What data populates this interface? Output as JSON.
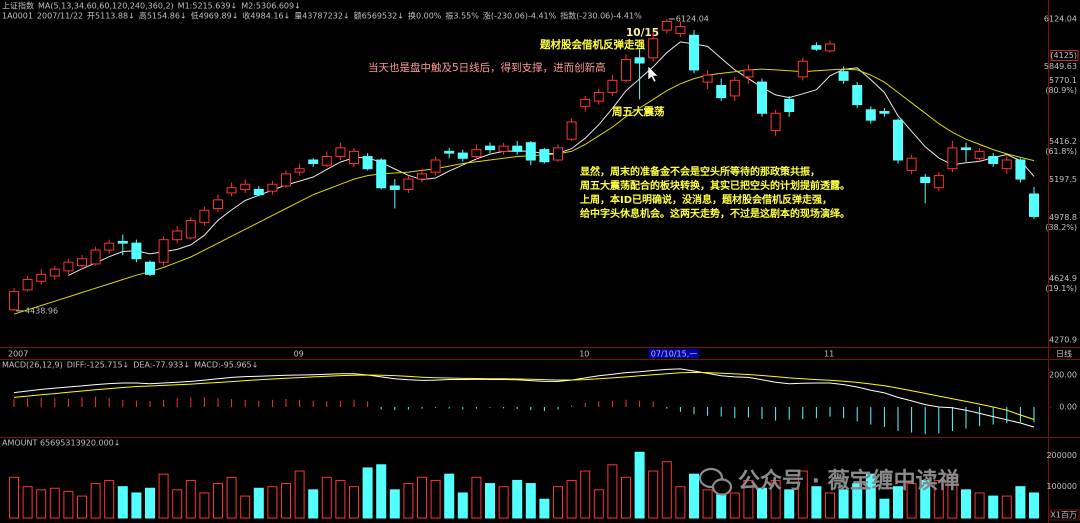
{
  "header": {
    "line1": [
      "上证指数",
      "MA(5,13,34,60,60,120,240,360,2)",
      "M1:5215.639↓",
      "M2:5306.609↓"
    ],
    "line2": [
      "1A0001",
      "2007/11/22",
      "开5113.88↓",
      "高5154.86↓",
      "低4969.89↓",
      "收4984.16↓",
      "量43787232↓",
      "额6569532↓",
      "换0.00%",
      "振3.55%",
      "涨(-230.06)-4.41%",
      "指数(-230.06)-4.41%"
    ]
  },
  "annotations": [
    "10/15",
    "题材股会借机反弹走强",
    "当天也是盘中触及5日线后，得到支撑，进而创新高",
    "周五大震荡"
  ],
  "note_lines": [
    "显然，周末的准备金不会是空头所等待的那政策共振，",
    "周五大震荡配合的板块转换，其实已把空头的计划提前透露。",
    "上周，本ID已明确说，没消息，题材股会借机反弹走强，",
    "给中字头休息机会。这两天走势，不过是这剧本的现场演绎。"
  ],
  "watermark": "公众号 · 薇宝缠中读禅",
  "chart_data": [
    {
      "type": "candlestick",
      "categories": [
        "2007",
        null,
        null,
        null,
        null,
        null,
        null,
        null,
        null,
        null,
        null,
        null,
        null,
        null,
        null,
        null,
        null,
        null,
        null,
        null,
        null,
        "09",
        null,
        null,
        null,
        null,
        null,
        null,
        null,
        null,
        null,
        null,
        null,
        null,
        null,
        null,
        null,
        null,
        null,
        null,
        null,
        null,
        "10",
        null,
        null,
        null,
        null,
        null,
        "07/10/15,一",
        null,
        null,
        null,
        null,
        null,
        null,
        null,
        null,
        null,
        null,
        null,
        "11",
        null,
        null,
        null,
        null,
        null,
        null,
        null,
        null,
        null,
        null,
        null,
        null,
        null,
        null,
        null
      ],
      "period": "日线",
      "open": [
        4445,
        4560,
        4610,
        4640,
        4670,
        4700,
        4710,
        4790,
        4840,
        4830,
        4720,
        4720,
        4850,
        4860,
        4950,
        5030,
        5120,
        5140,
        5140,
        5130,
        5160,
        5240,
        5310,
        5280,
        5330,
        5290,
        5330,
        5310,
        5160,
        5140,
        5200,
        5240,
        5360,
        5350,
        5330,
        5390,
        5360,
        5390,
        5410,
        5370,
        5310,
        5430,
        5620,
        5650,
        5700,
        5770,
        5900,
        5900,
        6060,
        6040,
        6030,
        5760,
        5740,
        5680,
        5790,
        5760,
        5480,
        5660,
        5790,
        5970,
        5940,
        5820,
        5740,
        5600,
        5590,
        5540,
        5250,
        5210,
        5150,
        5260,
        5380,
        5320,
        5330,
        5260,
        5310,
        5113.88
      ],
      "high": [
        4570,
        4640,
        4680,
        4700,
        4740,
        4760,
        4810,
        4850,
        4880,
        4850,
        4730,
        4870,
        4930,
        4980,
        5040,
        5110,
        5180,
        5200,
        5160,
        5190,
        5250,
        5290,
        5320,
        5360,
        5410,
        5380,
        5350,
        5320,
        5200,
        5220,
        5260,
        5330,
        5380,
        5370,
        5400,
        5410,
        5410,
        5420,
        5420,
        5380,
        5400,
        5550,
        5680,
        5720,
        5800,
        5920,
        5950,
        6050,
        6124.04,
        6110,
        6060,
        5830,
        5780,
        5790,
        5860,
        5780,
        5600,
        5680,
        5900,
        5990,
        6000,
        5850,
        5760,
        5620,
        5610,
        5550,
        5340,
        5230,
        5240,
        5420,
        5410,
        5380,
        5350,
        5330,
        5320,
        5154.86
      ],
      "low": [
        4438.96,
        4550,
        4590,
        4620,
        4650,
        4680,
        4700,
        4770,
        4760,
        4720,
        4640,
        4700,
        4830,
        4850,
        4930,
        5010,
        5100,
        5120,
        5100,
        5110,
        5150,
        5220,
        5270,
        5270,
        5310,
        5270,
        5250,
        5140,
        5030,
        5120,
        5180,
        5220,
        5320,
        5300,
        5310,
        5350,
        5340,
        5340,
        5280,
        5290,
        5300,
        5420,
        5590,
        5630,
        5680,
        5760,
        5660,
        5880,
        6040,
        6020,
        5810,
        5720,
        5650,
        5650,
        5750,
        5560,
        5450,
        5560,
        5770,
        5940,
        5930,
        5750,
        5610,
        5520,
        5560,
        5290,
        5230,
        5060,
        5130,
        5240,
        5300,
        5300,
        5270,
        5230,
        5180,
        4969.89
      ],
      "close": [
        4550,
        4620,
        4650,
        4680,
        4720,
        4740,
        4790,
        4830,
        4830,
        4740,
        4650,
        4850,
        4900,
        4960,
        5020,
        5080,
        5150,
        5170,
        5110,
        5170,
        5230,
        5260,
        5290,
        5330,
        5380,
        5360,
        5260,
        5150,
        5140,
        5200,
        5230,
        5310,
        5350,
        5320,
        5370,
        5370,
        5390,
        5360,
        5310,
        5300,
        5380,
        5530,
        5660,
        5700,
        5770,
        5890,
        5870,
        6010,
        6110,
        6080,
        5830,
        5800,
        5670,
        5770,
        5830,
        5580,
        5580,
        5590,
        5880,
        5950,
        5980,
        5770,
        5630,
        5540,
        5580,
        5310,
        5320,
        5180,
        5220,
        5380,
        5370,
        5360,
        5290,
        5310,
        5200,
        4984.16
      ],
      "up_color": "#ff3232",
      "down_color": "#54ffff",
      "ma_lines": [
        {
          "color": "#e8e8e8",
          "values": [
            null,
            null,
            null,
            null,
            4644,
            4682,
            4716,
            4752,
            4782,
            4786,
            4768,
            4780,
            4794,
            4820,
            4876,
            4962,
            5022,
            5076,
            5106,
            5136,
            5166,
            5188,
            5212,
            5256,
            5298,
            5324,
            5324,
            5296,
            5258,
            5222,
            5196,
            5206,
            5246,
            5282,
            5316,
            5344,
            5360,
            5362,
            5360,
            5346,
            5348,
            5376,
            5436,
            5514,
            5608,
            5710,
            5778,
            5848,
            5930,
            5992,
            5980,
            5966,
            5898,
            5830,
            5780,
            5730,
            5686,
            5670,
            5692,
            5716,
            5796,
            5834,
            5842,
            5774,
            5700,
            5566,
            5476,
            5386,
            5322,
            5282,
            5294,
            5302,
            5324,
            5342,
            5306,
            5215.639
          ]
        },
        {
          "color": "#d8d800",
          "values": [
            4420,
            4445,
            4470,
            4495,
            4520,
            4545,
            4570,
            4595,
            4620,
            4645,
            4665,
            4690,
            4720,
            4750,
            4790,
            4830,
            4870,
            4910,
            4950,
            4990,
            5030,
            5070,
            5110,
            5140,
            5170,
            5200,
            5220,
            5230,
            5235,
            5240,
            5250,
            5260,
            5275,
            5290,
            5300,
            5310,
            5320,
            5330,
            5335,
            5340,
            5345,
            5360,
            5400,
            5450,
            5500,
            5560,
            5610,
            5660,
            5710,
            5750,
            5780,
            5800,
            5810,
            5820,
            5830,
            5835,
            5830,
            5825,
            5820,
            5825,
            5830,
            5835,
            5830,
            5800,
            5760,
            5700,
            5640,
            5580,
            5520,
            5470,
            5430,
            5400,
            5370,
            5345,
            5325,
            5306.609
          ]
        }
      ],
      "ylim": [
        4270.9,
        6124.04
      ],
      "yticks": [
        6124.04,
        5770.1,
        5416.2,
        5197.5,
        4978.8,
        4624.9,
        4270.9
      ],
      "ratio_labels": [
        {
          "value": 5770.1,
          "label": "(80.9%)"
        },
        {
          "value": 5416.2,
          "label": "(61.8%)"
        },
        {
          "value": 4978.8,
          "label": "(38.2%)"
        },
        {
          "value": 4624.9,
          "label": "(19.1%)"
        }
      ],
      "marker": {
        "value": 5849.63,
        "label": "(4125)"
      }
    },
    {
      "type": "macd",
      "title": "MACD(26,12,9)",
      "series": [
        {
          "label": "DIFF:-125.715↓",
          "color": "#ffffff",
          "values": [
            90,
            100,
            110,
            118,
            125,
            132,
            140,
            146,
            150,
            150,
            145,
            150,
            155,
            160,
            168,
            176,
            185,
            190,
            192,
            195,
            198,
            200,
            202,
            205,
            208,
            208,
            200,
            188,
            176,
            170,
            166,
            168,
            172,
            172,
            174,
            172,
            172,
            170,
            165,
            160,
            160,
            168,
            182,
            195,
            205,
            215,
            220,
            228,
            235,
            238,
            225,
            210,
            195,
            188,
            185,
            170,
            155,
            145,
            148,
            150,
            150,
            140,
            125,
            105,
            88,
            60,
            38,
            15,
            0,
            -5,
            -20,
            -40,
            -60,
            -80,
            -100,
            -125.715
          ]
        },
        {
          "label": "DEA:-77.933↓",
          "color": "#ffff00",
          "values": [
            60,
            68,
            76,
            84,
            92,
            100,
            108,
            115,
            122,
            128,
            131,
            135,
            139,
            143,
            148,
            153,
            159,
            165,
            170,
            175,
            180,
            184,
            188,
            192,
            196,
            199,
            200,
            199,
            196,
            191,
            186,
            183,
            181,
            179,
            178,
            177,
            176,
            175,
            173,
            171,
            169,
            169,
            171,
            176,
            182,
            188,
            195,
            202,
            208,
            214,
            216,
            215,
            211,
            207,
            203,
            197,
            190,
            182,
            176,
            171,
            167,
            161,
            154,
            144,
            133,
            118,
            102,
            85,
            68,
            52,
            35,
            18,
            0,
            -20,
            -50,
            -77.933
          ]
        }
      ],
      "bars": {
        "label": "MACD:-95.965↓",
        "label_color": "#ff40ff",
        "up_color": "#ff3232",
        "down_color": "#54ffff",
        "values": [
          50,
          55,
          60,
          55,
          50,
          60,
          65,
          55,
          45,
          40,
          35,
          45,
          55,
          60,
          60,
          55,
          50,
          45,
          40,
          45,
          50,
          45,
          40,
          35,
          40,
          45,
          35,
          -15,
          -20,
          -15,
          -10,
          -5,
          -10,
          -15,
          -10,
          -5,
          -8,
          -12,
          -20,
          -25,
          -15,
          10,
          25,
          35,
          40,
          45,
          40,
          35,
          -10,
          -30,
          -45,
          -55,
          -60,
          -70,
          -65,
          -75,
          -85,
          -80,
          -75,
          -70,
          -60,
          -70,
          -90,
          -110,
          -125,
          -150,
          -160,
          -170,
          -165,
          -150,
          -135,
          -120,
          -110,
          -100,
          -95,
          -95.965
        ]
      },
      "ylim": [
        -187.5,
        281.25
      ],
      "yticks": [
        {
          "value": 200,
          "label": "200.00"
        },
        {
          "value": 0,
          "label": "0.00"
        }
      ]
    },
    {
      "type": "volume",
      "title": "AMOUNT 65695313920.000↓",
      "values": [
        130000,
        100000,
        90000,
        95000,
        85000,
        70000,
        110000,
        120000,
        100000,
        80000,
        95000,
        140000,
        90000,
        120000,
        80000,
        110000,
        130000,
        70000,
        95000,
        100000,
        110000,
        150000,
        90000,
        130000,
        120000,
        100000,
        160000,
        170000,
        90000,
        110000,
        130000,
        120000,
        140000,
        80000,
        130000,
        110000,
        100000,
        120000,
        110000,
        60000,
        100000,
        120000,
        150000,
        90000,
        170000,
        130000,
        210000,
        150000,
        180000,
        100000,
        140000,
        90000,
        110000,
        80000,
        120000,
        95000,
        120000,
        90000,
        150000,
        100000,
        80000,
        90000,
        110000,
        140000,
        60000,
        100000,
        110000,
        120000,
        120000,
        130000,
        90000,
        80000,
        70000,
        70000,
        100000,
        80000
      ],
      "ylim": [
        0,
        230000
      ],
      "yticks": [
        200000,
        100000
      ],
      "unit": "X1百万"
    }
  ]
}
